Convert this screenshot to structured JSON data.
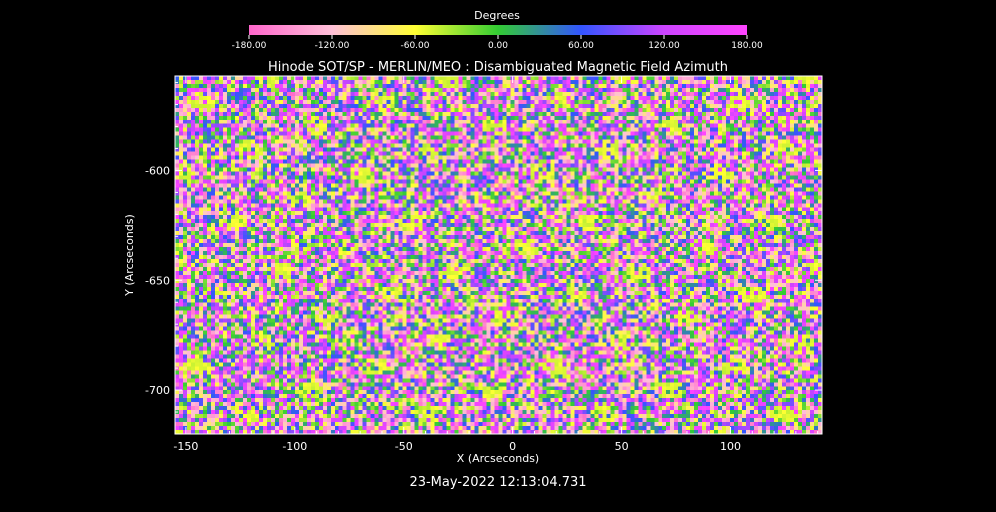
{
  "chart_data": {
    "type": "heatmap",
    "title": "Hinode SOT/SP - MERLIN/MEO : Disambiguated Magnetic Field Azimuth",
    "xlabel": "X (Arcseconds)",
    "ylabel": "Y (Arcseconds)",
    "xlim": [
      -155,
      142
    ],
    "ylim": [
      -720,
      -557
    ],
    "x_ticks": [
      -150,
      -100,
      -50,
      0,
      50,
      100
    ],
    "y_ticks": [
      -600,
      -650,
      -700
    ],
    "colorbar": {
      "label": "Degrees",
      "range": [
        -180,
        180
      ],
      "ticks": [
        "-180.00",
        "-120.00",
        "-60.00",
        "0.00",
        "60.00",
        "120.00",
        "180.00"
      ],
      "colors": [
        "#ff66cc",
        "#ffc0d8",
        "#ffff33",
        "#33cc33",
        "#3355ff",
        "#cc44ff",
        "#ff44ff"
      ]
    },
    "timestamp": "23-May-2022 12:13:04.731",
    "grid": false
  }
}
